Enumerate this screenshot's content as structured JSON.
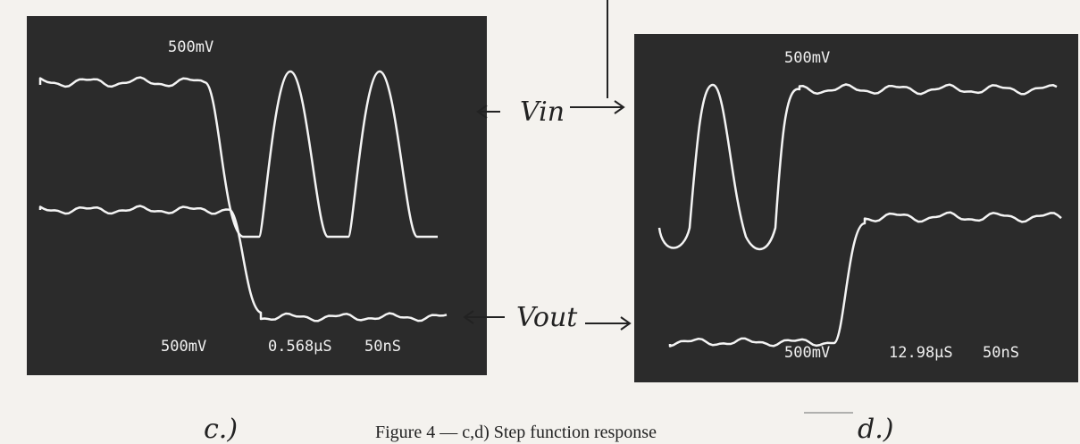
{
  "panels": [
    {
      "top_label": "500mV",
      "volts": "500mV",
      "time": "0.568µS",
      "timebase": "50nS",
      "label": "c.)"
    },
    {
      "top_label": "500mV",
      "volts": "500mV",
      "time": "12.98µS",
      "timebase": "50nS",
      "label": "d.)"
    }
  ],
  "annotations": {
    "vin": "Vin",
    "vout": "Vout"
  },
  "caption": "Figure 4 — c,d) Step function response"
}
